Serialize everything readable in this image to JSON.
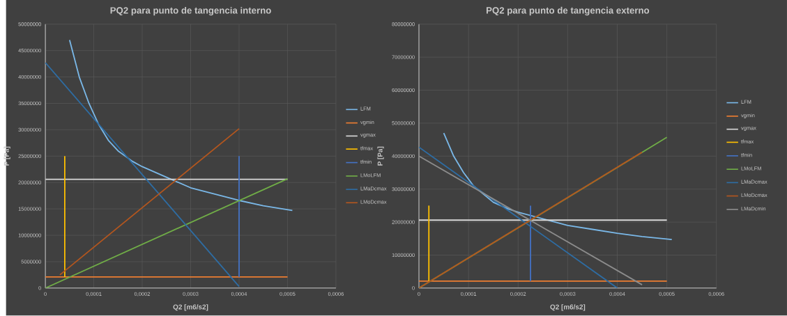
{
  "chart_data": [
    {
      "type": "line",
      "title": "PQ2 para punto de tangencia interno",
      "xlabel": "Q2 [m6/s2]",
      "ylabel": "P [Pa]",
      "xlim": [
        0,
        0.0006
      ],
      "ylim": [
        0,
        50000000
      ],
      "grid": true,
      "legend": "right",
      "xticks": [
        {
          "value": 0,
          "label": "0"
        },
        {
          "value": 0.0001,
          "label": "0,0001"
        },
        {
          "value": 0.0002,
          "label": "0,0002"
        },
        {
          "value": 0.0003,
          "label": "0,0003"
        },
        {
          "value": 0.0004,
          "label": "0,0004"
        },
        {
          "value": 0.0005,
          "label": "0,0005"
        },
        {
          "value": 0.0006,
          "label": "0,0006"
        }
      ],
      "yticks": [
        0,
        5000000,
        10000000,
        15000000,
        20000000,
        25000000,
        30000000,
        35000000,
        40000000,
        45000000,
        50000000
      ],
      "series": [
        {
          "name": "LFM",
          "color": "#7ab8e8",
          "x": [
            5e-05,
            7e-05,
            9e-05,
            0.00011,
            0.00013,
            0.00015,
            0.00018,
            0.0002,
            0.00025,
            0.0003,
            0.00035,
            0.0004,
            0.00045,
            0.00051
          ],
          "values": [
            47000000,
            40000000,
            35000000,
            31000000,
            28000000,
            26000000,
            24000000,
            23000000,
            21000000,
            19000000,
            17800000,
            16600000,
            15600000,
            14700000
          ]
        },
        {
          "name": "vgmin",
          "color": "#ed7d31",
          "x": [
            0,
            0.0005
          ],
          "values": [
            2100000,
            2100000
          ]
        },
        {
          "name": "vgmax",
          "color": "#d9d9d9",
          "x": [
            0,
            0.0005
          ],
          "values": [
            20600000,
            20600000
          ]
        },
        {
          "name": "tfmax",
          "color": "#ffc000",
          "x": [
            4e-05,
            4e-05
          ],
          "values": [
            2100000,
            25000000
          ]
        },
        {
          "name": "tfmin",
          "color": "#4472c4",
          "x": [
            0.0004,
            0.0004
          ],
          "values": [
            2100000,
            25000000
          ]
        },
        {
          "name": "LMoLFM",
          "color": "#70ad47",
          "x": [
            0,
            0.0005
          ],
          "values": [
            0,
            20700000
          ]
        },
        {
          "name": "LMaDcmax",
          "color": "#2e6da4",
          "x": [
            0,
            0.0004
          ],
          "values": [
            42700000,
            300000
          ]
        },
        {
          "name": "LMoDcmax",
          "color": "#b4561e",
          "x": [
            3e-05,
            0.0004
          ],
          "values": [
            2500000,
            30200000
          ]
        }
      ]
    },
    {
      "type": "line",
      "title": "PQ2 para punto de tangencia externo",
      "xlabel": "Q2 [m6/s2]",
      "ylabel": "P [Pa]",
      "xlim": [
        0,
        0.0006
      ],
      "ylim": [
        0,
        80000000
      ],
      "grid": true,
      "legend": "right",
      "xticks": [
        {
          "value": 0,
          "label": "0"
        },
        {
          "value": 0.0001,
          "label": "0,0001"
        },
        {
          "value": 0.0002,
          "label": "0,0002"
        },
        {
          "value": 0.0003,
          "label": "0,0003"
        },
        {
          "value": 0.0004,
          "label": "0,0004"
        },
        {
          "value": 0.0005,
          "label": "0,0005"
        },
        {
          "value": 0.0006,
          "label": "0,0006"
        }
      ],
      "yticks": [
        0,
        10000000,
        20000000,
        30000000,
        40000000,
        50000000,
        60000000,
        70000000,
        80000000
      ],
      "series": [
        {
          "name": "LFM",
          "color": "#7ab8e8",
          "x": [
            5e-05,
            7e-05,
            9e-05,
            0.00011,
            0.00013,
            0.00015,
            0.00018,
            0.0002,
            0.00025,
            0.0003,
            0.00035,
            0.0004,
            0.00045,
            0.00051
          ],
          "values": [
            47000000,
            40000000,
            35000000,
            31000000,
            28500000,
            26000000,
            24000000,
            23000000,
            21000000,
            19000000,
            17800000,
            16600000,
            15600000,
            14700000
          ]
        },
        {
          "name": "vgmin",
          "color": "#ed7d31",
          "x": [
            0,
            0.0005
          ],
          "values": [
            2100000,
            2100000
          ]
        },
        {
          "name": "vgmax",
          "color": "#d9d9d9",
          "x": [
            0,
            0.0005
          ],
          "values": [
            20600000,
            20600000
          ]
        },
        {
          "name": "tfmax",
          "color": "#ffc000",
          "x": [
            2e-05,
            2e-05
          ],
          "values": [
            2100000,
            25000000
          ]
        },
        {
          "name": "tfmin",
          "color": "#4472c4",
          "x": [
            0.000225,
            0.000225
          ],
          "values": [
            2100000,
            25000000
          ]
        },
        {
          "name": "LMoLFM",
          "color": "#70ad47",
          "x": [
            0,
            0.0005
          ],
          "values": [
            0,
            45700000
          ]
        },
        {
          "name": "LMaDcmax",
          "color": "#2e6da4",
          "x": [
            0,
            0.0004
          ],
          "values": [
            42700000,
            0
          ]
        },
        {
          "name": "LMoDcmax",
          "color": "#b4561e",
          "x": [
            0,
            0.00045
          ],
          "values": [
            0,
            41200000
          ]
        },
        {
          "name": "LMaDcmin",
          "color": "#8c8c8c",
          "x": [
            0,
            0.00045
          ],
          "values": [
            40000000,
            1000000
          ]
        }
      ]
    }
  ]
}
